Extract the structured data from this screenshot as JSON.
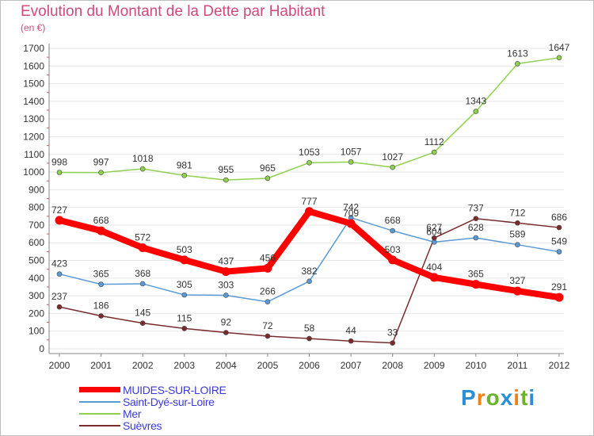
{
  "title": "Evolution du Montant de la Dette par Habitant",
  "subtitle": "(en €)",
  "brand": {
    "text": "Proxiti",
    "letter_colors": [
      "#2a8fd6",
      "#e8831f",
      "#6ab42d",
      "#2a8fd6",
      "#e8831f",
      "#6ab42d",
      "#2a8fd6"
    ]
  },
  "chart_data": {
    "type": "line",
    "title": "Evolution du Montant de la Dette par Habitant",
    "ylabel": "(en €)",
    "xlabel": "",
    "ylim": [
      0,
      1700
    ],
    "y_ticks": [
      0,
      100,
      200,
      300,
      400,
      500,
      600,
      700,
      800,
      900,
      1000,
      1100,
      1200,
      1300,
      1400,
      1500,
      1600,
      1700
    ],
    "categories": [
      "2000",
      "2001",
      "2002",
      "2003",
      "2004",
      "2005",
      "2006",
      "2007",
      "2008",
      "2009",
      "2010",
      "2011",
      "2012"
    ],
    "grid": "horizontal",
    "legend_position": "bottom-left",
    "series": [
      {
        "name": "Mer",
        "color": "#8fd14f",
        "values": [
          998,
          997,
          1018,
          981,
          955,
          965,
          1053,
          1057,
          1027,
          1112,
          1343,
          1613,
          1647
        ]
      },
      {
        "name": "Saint-Dyé-sur-Loire",
        "color": "#5b9bd5",
        "values": [
          423,
          365,
          368,
          305,
          303,
          266,
          382,
          742,
          668,
          604,
          628,
          589,
          549
        ]
      },
      {
        "name": "Suèvres",
        "color": "#7a2c2c",
        "values": [
          237,
          186,
          145,
          115,
          92,
          72,
          58,
          44,
          33,
          627,
          737,
          712,
          686
        ]
      },
      {
        "name": "MUIDES-SUR-LOIRE",
        "color": "#ff0000",
        "values": [
          727,
          668,
          572,
          503,
          437,
          456,
          777,
          709,
          503,
          404,
          365,
          327,
          291
        ]
      }
    ]
  },
  "legend": {
    "items": [
      {
        "label": "MUIDES-SUR-LOIRE",
        "color": "#ff0000"
      },
      {
        "label": "Saint-Dyé-sur-Loire",
        "color": "#5b9bd5"
      },
      {
        "label": "Mer",
        "color": "#8fd14f"
      },
      {
        "label": "Suèvres",
        "color": "#7a2c2c"
      }
    ]
  }
}
